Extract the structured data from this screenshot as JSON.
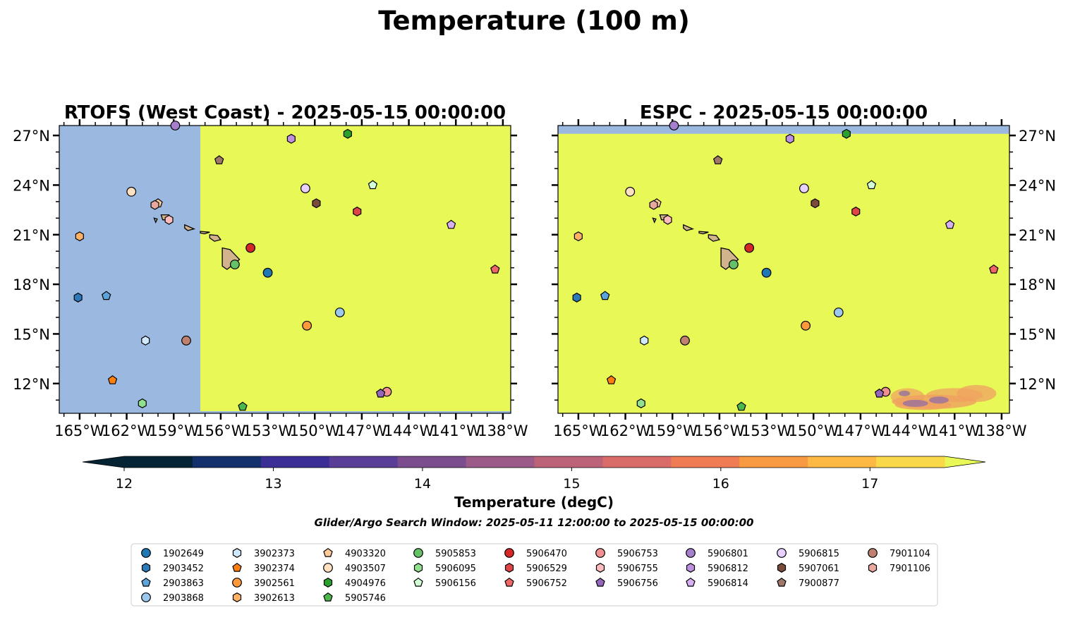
{
  "suptitle": "Temperature (100 m)",
  "colors": {
    "ocean_fill": "#e7f857",
    "masked_fill": "#9ab8e0",
    "land_fill": "#d2b48c",
    "warm_patch": "#f0a060",
    "cool_patch": "#9870a0"
  },
  "chart_data": [
    {
      "type": "map",
      "title": "RTOFS (West Coast) - 2025-05-15 00:00:00",
      "xlim": [
        -166.3,
        -137.5
      ],
      "ylim": [
        10.2,
        27.6
      ],
      "x_ticks": [
        -165,
        -162,
        -159,
        -156,
        -153,
        -150,
        -147,
        -144,
        -141,
        -138
      ],
      "x_tick_labels": [
        "165°W",
        "162°W",
        "159°W",
        "156°W",
        "153°W",
        "150°W",
        "147°W",
        "144°W",
        "141°W",
        "138°W"
      ],
      "y_ticks": [
        12,
        15,
        18,
        21,
        24,
        27
      ],
      "y_tick_labels": [
        "12°N",
        "15°N",
        "18°N",
        "21°N",
        "24°N",
        "27°N"
      ],
      "y_axis_side": "left",
      "masked_region": {
        "lon_max": -157.3,
        "description": "no data west of domain"
      },
      "field_value_degC": "above 17.5"
    },
    {
      "type": "map",
      "title": "ESPC - 2025-05-15 00:00:00",
      "xlim": [
        -166.3,
        -137.5
      ],
      "ylim": [
        10.2,
        27.6
      ],
      "x_ticks": [
        -165,
        -162,
        -159,
        -156,
        -153,
        -150,
        -147,
        -144,
        -141,
        -138
      ],
      "x_tick_labels": [
        "165°W",
        "162°W",
        "159°W",
        "156°W",
        "153°W",
        "150°W",
        "147°W",
        "144°W",
        "141°W",
        "138°W"
      ],
      "y_ticks": [
        12,
        15,
        18,
        21,
        24,
        27
      ],
      "y_tick_labels": [
        "12°N",
        "15°N",
        "18°N",
        "21°N",
        "24°N",
        "27°N"
      ],
      "y_axis_side": "right",
      "masked_region": {
        "lat_min": 27.1
      },
      "field_value_degC": "above 17.5"
    }
  ],
  "colorbar": {
    "label": "Temperature (degC)",
    "min": 12,
    "max": 17.5,
    "extend": "both",
    "ticks": [
      12,
      13,
      14,
      15,
      16,
      17
    ],
    "tick_labels": [
      "12",
      "13",
      "14",
      "15",
      "16",
      "17"
    ],
    "colors": [
      "#042333",
      "#13306d",
      "#3b2f96",
      "#5a3d96",
      "#7b4d8f",
      "#9b5a87",
      "#bc6279",
      "#d96c68",
      "#ef7c53",
      "#f89a41",
      "#fdb944",
      "#f9d84a"
    ],
    "under_color": "#042333",
    "over_color": "#e7f857"
  },
  "search_window": "Glider/Argo Search Window: 2025-05-11 12:00:00 to 2025-05-15 00:00:00",
  "floats": [
    {
      "id": "1902649",
      "marker": "circle",
      "color": "#1f77b4",
      "lon": -153.0,
      "lat": 18.7
    },
    {
      "id": "2903452",
      "marker": "hexagon",
      "color": "#2b7bba",
      "lon": -165.1,
      "lat": 17.2
    },
    {
      "id": "2903863",
      "marker": "pentagon",
      "color": "#5ba4dc",
      "lon": -163.3,
      "lat": 17.3
    },
    {
      "id": "2903868",
      "marker": "circle",
      "color": "#9cc8ee",
      "lon": -148.4,
      "lat": 16.3
    },
    {
      "id": "3902373",
      "marker": "hexagon",
      "color": "#d0e8fb",
      "lon": -160.8,
      "lat": 14.6
    },
    {
      "id": "3902374",
      "marker": "pentagon",
      "color": "#ff7f0e",
      "lon": -162.9,
      "lat": 12.2
    },
    {
      "id": "3902561",
      "marker": "circle",
      "color": "#ff9a3c",
      "lon": -150.5,
      "lat": 15.5
    },
    {
      "id": "3902613",
      "marker": "hexagon",
      "color": "#ffb266",
      "lon": -165.0,
      "lat": 20.9
    },
    {
      "id": "4903320",
      "marker": "pentagon",
      "color": "#ffcc99",
      "lon": -160.0,
      "lat": 22.9
    },
    {
      "id": "4903507",
      "marker": "circle",
      "color": "#ffe0c0",
      "lon": -161.7,
      "lat": 23.6
    },
    {
      "id": "4904976",
      "marker": "hexagon",
      "color": "#2ca02c",
      "lon": -147.9,
      "lat": 27.1
    },
    {
      "id": "5905746",
      "marker": "pentagon",
      "color": "#4cb84c",
      "lon": -154.6,
      "lat": 10.6
    },
    {
      "id": "5905853",
      "marker": "circle",
      "color": "#66c266",
      "lon": -155.1,
      "lat": 19.2
    },
    {
      "id": "5906095",
      "marker": "hexagon",
      "color": "#90e090",
      "lon": -161.0,
      "lat": 10.8
    },
    {
      "id": "5906156",
      "marker": "pentagon",
      "color": "#d4ffd4",
      "lon": -146.3,
      "lat": 24.0
    },
    {
      "id": "5906470",
      "marker": "circle",
      "color": "#d62728",
      "lon": -154.1,
      "lat": 20.2
    },
    {
      "id": "5906529",
      "marker": "hexagon",
      "color": "#e04446",
      "lon": -147.3,
      "lat": 22.4
    },
    {
      "id": "5906752",
      "marker": "pentagon",
      "color": "#ee6666",
      "lon": -138.5,
      "lat": 18.9
    },
    {
      "id": "5906753",
      "marker": "circle",
      "color": "#f09090",
      "lon": -145.4,
      "lat": 11.5
    },
    {
      "id": "5906755",
      "marker": "hexagon",
      "color": "#ffbcbc",
      "lon": -159.3,
      "lat": 21.9
    },
    {
      "id": "5906756",
      "marker": "pentagon",
      "color": "#9467bd",
      "lon": -145.8,
      "lat": 11.4
    },
    {
      "id": "5906801",
      "marker": "circle",
      "color": "#a57fcc",
      "lon": -158.9,
      "lat": 27.6
    },
    {
      "id": "5906812",
      "marker": "hexagon",
      "color": "#c090e0",
      "lon": -151.5,
      "lat": 26.8
    },
    {
      "id": "5906814",
      "marker": "pentagon",
      "color": "#d6b0f2",
      "lon": -141.3,
      "lat": 21.6
    },
    {
      "id": "5906815",
      "marker": "circle",
      "color": "#e8d0ff",
      "lon": -150.6,
      "lat": 23.8
    },
    {
      "id": "5907061",
      "marker": "hexagon",
      "color": "#7a4a3a",
      "lon": -149.9,
      "lat": 22.9
    },
    {
      "id": "7900877",
      "marker": "pentagon",
      "color": "#a0786a",
      "lon": -156.1,
      "lat": 25.5
    },
    {
      "id": "7901104",
      "marker": "circle",
      "color": "#c08070",
      "lon": -158.2,
      "lat": 14.6
    },
    {
      "id": "7901106",
      "marker": "hexagon",
      "color": "#e8a8a0",
      "lon": -160.2,
      "lat": 22.8
    }
  ]
}
